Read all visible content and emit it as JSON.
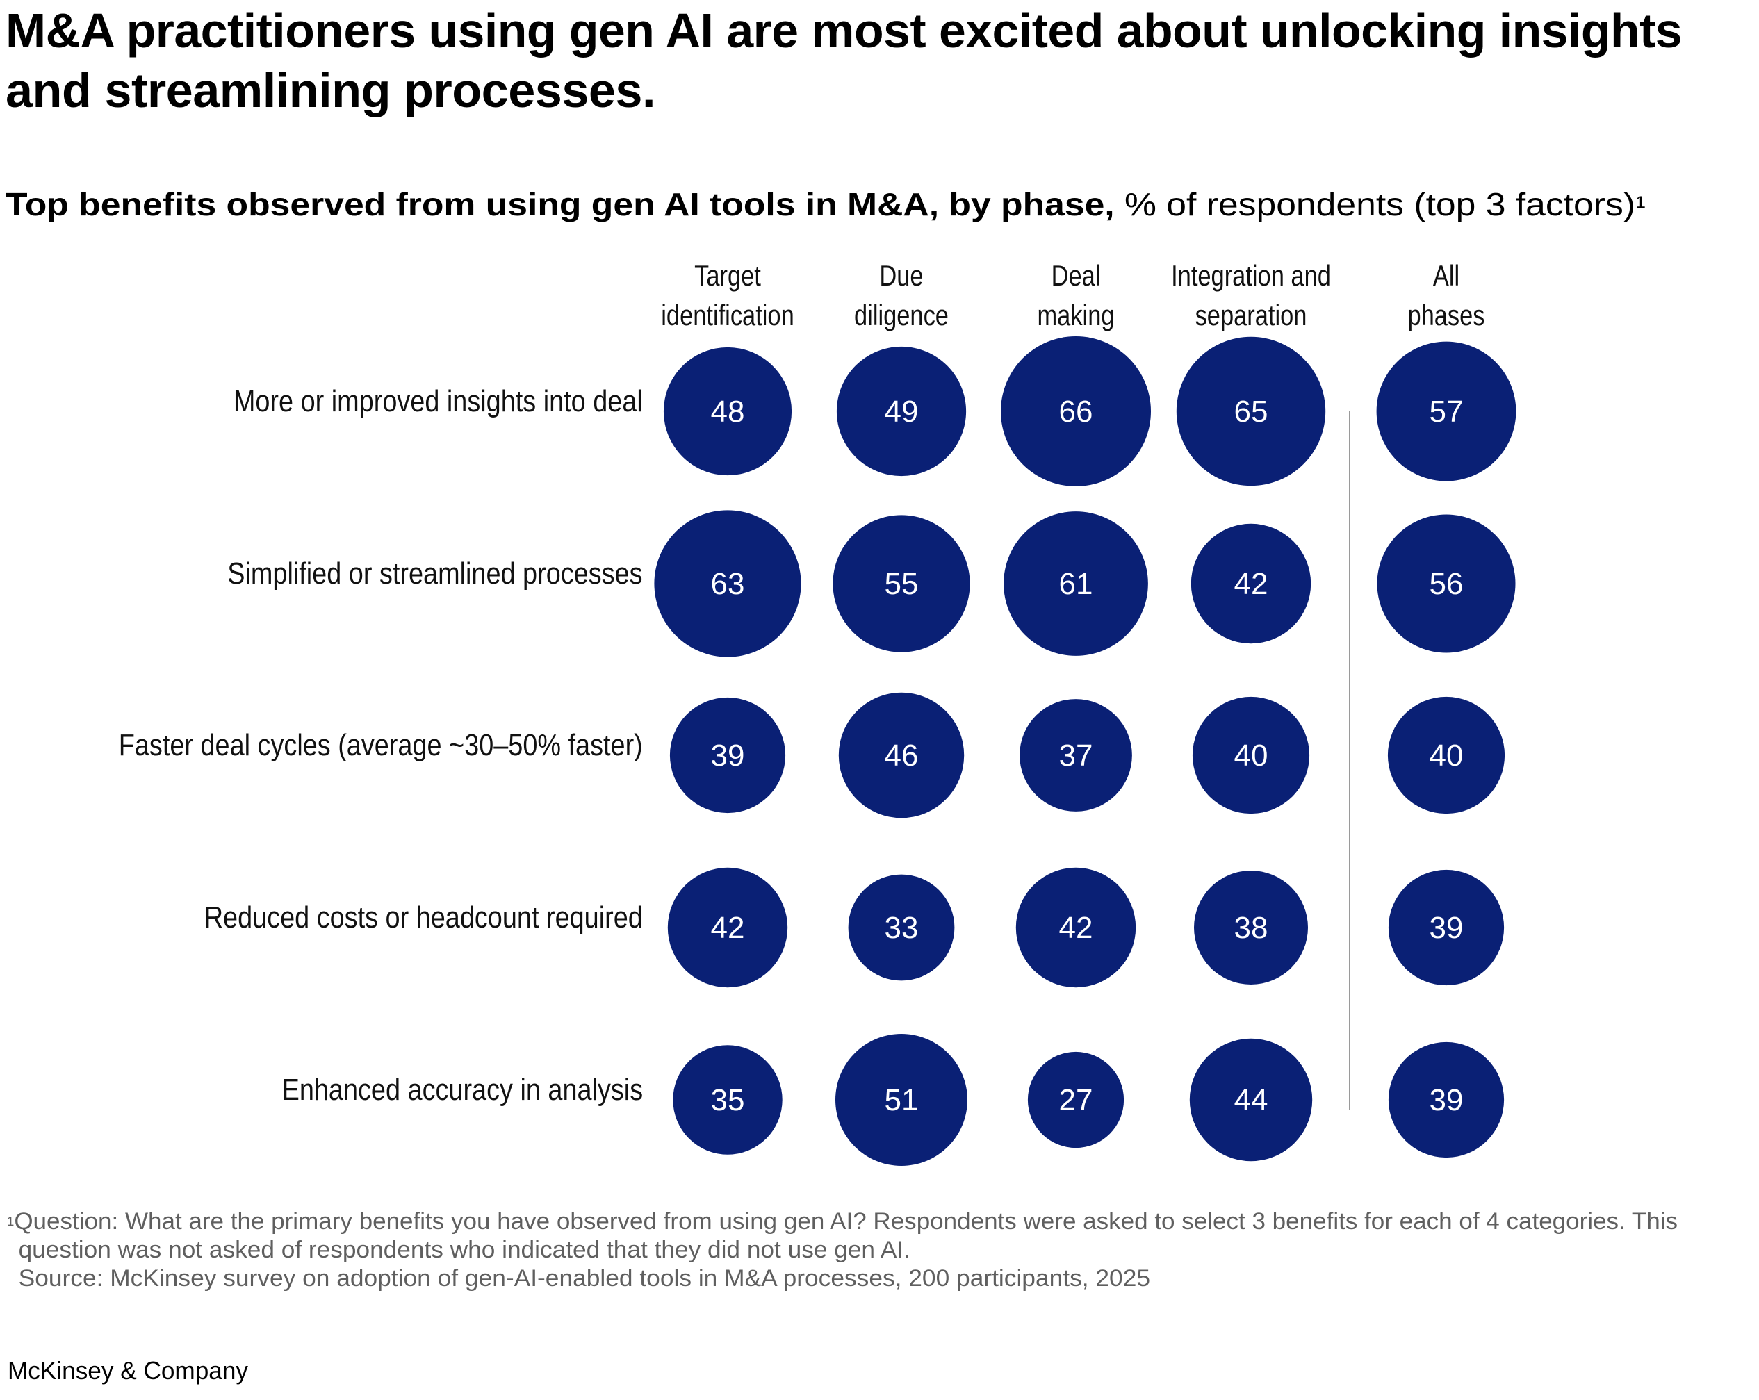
{
  "title": {
    "lines": [
      "M&A practitioners using gen AI are most excited about unlocking insights",
      "and streamlining processes."
    ]
  },
  "subtitle": {
    "bold": "Top benefits observed from using gen AI tools in M&A, by phase,",
    "regular": "% of respondents (top 3 factors)",
    "footnote_marker": "1"
  },
  "chart_data": {
    "type": "bubble-matrix",
    "title": "Top benefits observed from using gen AI tools in M&A, by phase",
    "unit": "% of respondents (top 3 factors)",
    "columns": [
      {
        "label_lines": [
          "Target",
          "identification"
        ]
      },
      {
        "label_lines": [
          "Due",
          "diligence"
        ]
      },
      {
        "label_lines": [
          "Deal",
          "making"
        ]
      },
      {
        "label_lines": [
          "Integration and",
          "separation"
        ]
      },
      {
        "label_lines": [
          "All",
          "phases"
        ]
      }
    ],
    "rows": [
      {
        "label": "More or improved insights into deal",
        "values": [
          48,
          49,
          66,
          65,
          57
        ]
      },
      {
        "label": "Simplified or streamlined processes",
        "values": [
          63,
          55,
          61,
          42,
          56
        ]
      },
      {
        "label": "Faster deal cycles (average ~30–50% faster)",
        "values": [
          39,
          46,
          37,
          40,
          40
        ]
      },
      {
        "label": "Reduced costs or headcount required",
        "values": [
          42,
          33,
          42,
          38,
          39
        ]
      },
      {
        "label": "Enhanced accuracy in analysis",
        "values": [
          35,
          51,
          27,
          44,
          39
        ]
      }
    ],
    "size_encoding": "bubble area proportional to value",
    "bubble_color": "#0a2075",
    "value_text_color": "#ffffff",
    "divider_before_column": 4,
    "divider_color": "#9a9a9a"
  },
  "footnotes": {
    "marker": "1",
    "question_line1": "Question: What are the primary benefits you have observed from using gen AI? Respondents were asked to select 3 benefits for each of 4 categories. This",
    "question_line2": "question was not asked of respondents who indicated that they did not use gen AI.",
    "source": "Source: McKinsey survey on adoption of gen-AI-enabled tools in M&A processes, 200 participants, 2025"
  },
  "brand": {
    "logo_text": "McKinsey & Company"
  }
}
